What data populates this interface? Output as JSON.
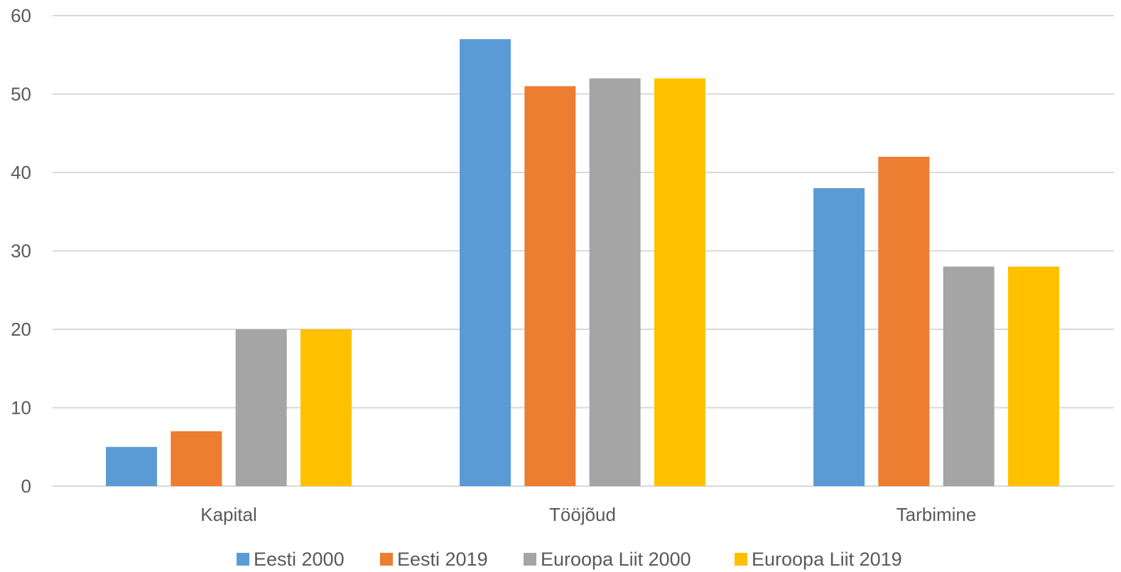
{
  "chart_data": {
    "type": "bar",
    "title": "",
    "xlabel": "",
    "ylabel": "",
    "categories": [
      "Kapital",
      "Tööjõud",
      "Tarbimine"
    ],
    "series": [
      {
        "name": "Eesti 2000",
        "color": "#5B9BD5",
        "values": [
          5,
          57,
          38
        ]
      },
      {
        "name": "Eesti 2019",
        "color": "#ED7D31",
        "values": [
          7,
          51,
          42
        ]
      },
      {
        "name": "Euroopa Liit 2000",
        "color": "#A5A5A5",
        "values": [
          20,
          52,
          28
        ]
      },
      {
        "name": "Euroopa Liit 2019",
        "color": "#FFC000",
        "values": [
          20,
          52,
          28
        ]
      }
    ],
    "ylim": [
      0,
      60
    ],
    "yticks": [
      0,
      10,
      20,
      30,
      40,
      50,
      60
    ],
    "grid": true,
    "legend_position": "bottom-center",
    "gridline_color": "#D9D9D9",
    "text_color": "#595959"
  }
}
